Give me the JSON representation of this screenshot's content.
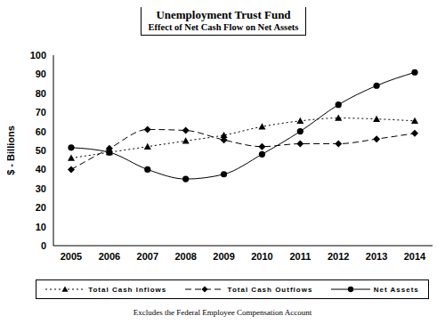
{
  "chart_data": {
    "type": "line",
    "title": "Unemployment Trust Fund",
    "subtitle": "Effect of Net Cash Flow on Net Assets",
    "y_label": "$ - Billions",
    "footnote": "Excludes the Federal Employee Compensation Account",
    "categories": [
      "2005",
      "2006",
      "2007",
      "2008",
      "2009",
      "2010",
      "2011",
      "2012",
      "2013",
      "2014"
    ],
    "series": [
      {
        "name": "Total Cash Inflows",
        "color": "#000000",
        "marker": "triangle",
        "line_style": "dotted",
        "values": [
          46,
          49,
          52,
          55,
          58,
          62.5,
          65.5,
          67,
          66.5,
          65.5
        ]
      },
      {
        "name": "Total Cash Outflows",
        "color": "#000000",
        "marker": "diamond",
        "line_style": "dashed",
        "values": [
          40,
          51,
          61,
          60.5,
          55.5,
          52,
          53.5,
          53.5,
          56,
          59
        ]
      },
      {
        "name": "Net Assets",
        "color": "#000000",
        "marker": "circle",
        "line_style": "solid",
        "values": [
          51.5,
          49,
          40,
          35,
          37.5,
          48,
          60,
          74,
          84,
          91
        ]
      }
    ],
    "ylim": [
      0,
      100
    ],
    "yticks": [
      0,
      10,
      20,
      30,
      40,
      50,
      60,
      70,
      80,
      90,
      100
    ],
    "grid": false,
    "legend": "bottom"
  }
}
